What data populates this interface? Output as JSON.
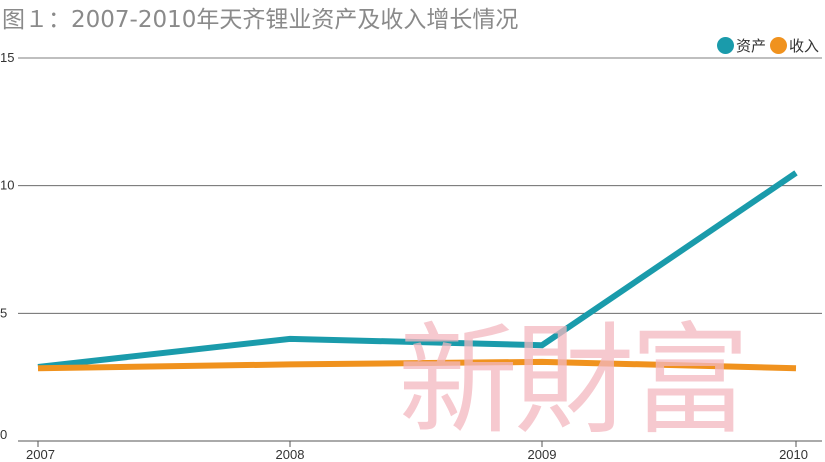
{
  "chart_data": {
    "type": "line",
    "title": "图１：2007-2010年天齐锂业资产及收入增长情况",
    "categories": [
      "2007",
      "2008",
      "2009",
      "2010"
    ],
    "series": [
      {
        "name": "资产",
        "values": [
          2.9,
          4.0,
          3.75,
          10.5
        ],
        "color": "#1a9bab"
      },
      {
        "name": "收入",
        "values": [
          2.85,
          3.0,
          3.1,
          2.85
        ],
        "color": "#f0921e"
      }
    ],
    "yticks": [
      0,
      5,
      10,
      15
    ],
    "ylim": [
      0,
      15
    ],
    "grid": true,
    "legend": "top-right"
  },
  "watermark": "新財富"
}
